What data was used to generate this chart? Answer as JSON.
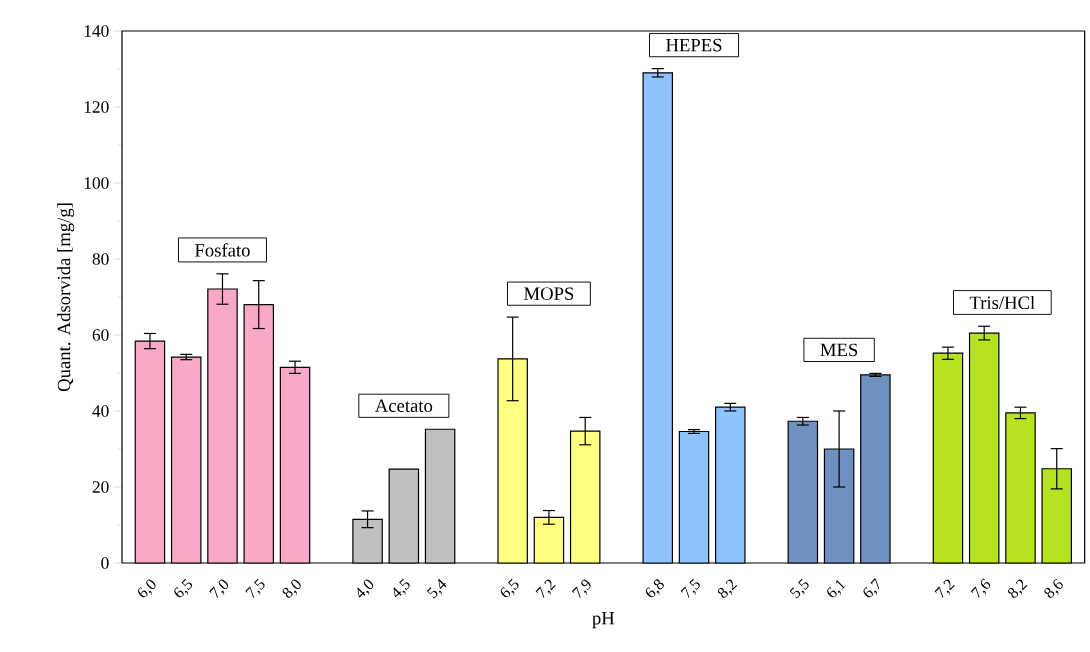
{
  "chart_data": {
    "type": "bar",
    "xlabel": "pH",
    "ylabel": "Quant. Adsorvida [mg/g]",
    "categories": [
      "6,0",
      "6,5",
      "7,0",
      "7,5",
      "8,0",
      null,
      "4,0",
      "4,5",
      "5,4",
      null,
      "6,5",
      "7,2",
      "7,9",
      null,
      "6,8",
      "7,5",
      "8,2",
      null,
      "5,5",
      "6,1",
      "6,7",
      null,
      "7,2",
      "7,6",
      "8,2",
      "8,6"
    ],
    "series": [
      {
        "name": "Fosfato",
        "color": "#f9a8c8",
        "values": [
          58.4,
          54.2,
          72.1,
          68,
          51.5,
          null,
          null,
          null,
          null,
          null,
          null,
          null,
          null,
          null,
          null,
          null,
          null,
          null,
          null,
          null,
          null,
          null,
          null,
          null,
          null,
          null
        ],
        "errors": [
          2,
          0.7,
          4,
          6.3,
          1.6,
          null,
          null,
          null,
          null,
          null,
          null,
          null,
          null,
          null,
          null,
          null,
          null,
          null,
          null,
          null,
          null,
          null,
          null,
          null,
          null,
          null
        ]
      },
      {
        "name": "Acetato",
        "color": "#c0c0c0",
        "values": [
          null,
          null,
          null,
          null,
          null,
          null,
          11.5,
          24.7,
          35.2,
          null,
          null,
          null,
          null,
          null,
          null,
          null,
          null,
          null,
          null,
          null,
          null,
          null,
          null,
          null,
          null,
          null
        ],
        "errors": [
          null,
          null,
          null,
          null,
          null,
          null,
          2.2,
          null,
          null,
          null,
          null,
          null,
          null,
          null,
          null,
          null,
          null,
          null,
          null,
          null,
          null,
          null,
          null,
          null,
          null,
          null
        ]
      },
      {
        "name": "MOPS",
        "color": "#ffff80",
        "values": [
          null,
          null,
          null,
          null,
          null,
          null,
          null,
          null,
          null,
          null,
          53.7,
          12,
          34.7,
          null,
          null,
          null,
          null,
          null,
          null,
          null,
          null,
          null,
          null,
          null,
          null,
          null
        ],
        "errors": [
          null,
          null,
          null,
          null,
          null,
          null,
          null,
          null,
          null,
          null,
          11,
          1.8,
          3.6,
          null,
          null,
          null,
          null,
          null,
          null,
          null,
          null,
          null,
          null,
          null,
          null,
          null
        ]
      },
      {
        "name": "HEPES",
        "color": "#8fc3ff",
        "values": [
          null,
          null,
          null,
          null,
          null,
          null,
          null,
          null,
          null,
          null,
          null,
          null,
          null,
          null,
          129,
          34.6,
          41,
          null,
          null,
          null,
          null,
          null,
          null,
          null,
          null,
          null
        ],
        "errors": [
          null,
          null,
          null,
          null,
          null,
          null,
          null,
          null,
          null,
          null,
          null,
          null,
          null,
          null,
          1.1,
          0.5,
          1,
          null,
          null,
          null,
          null,
          null,
          null,
          null,
          null,
          null
        ]
      },
      {
        "name": "MES",
        "color": "#6f91c0",
        "values": [
          null,
          null,
          null,
          null,
          null,
          null,
          null,
          null,
          null,
          null,
          null,
          null,
          null,
          null,
          null,
          null,
          null,
          null,
          37.3,
          30,
          49.5,
          null,
          null,
          null,
          null,
          null
        ],
        "errors": [
          null,
          null,
          null,
          null,
          null,
          null,
          null,
          null,
          null,
          null,
          null,
          null,
          null,
          null,
          null,
          null,
          null,
          null,
          1,
          10,
          0.4,
          null,
          null,
          null,
          null,
          null
        ]
      },
      {
        "name": "Tris/HCl",
        "color": "#b5e31f",
        "values": [
          null,
          null,
          null,
          null,
          null,
          null,
          null,
          null,
          null,
          null,
          null,
          null,
          null,
          null,
          null,
          null,
          null,
          null,
          null,
          null,
          null,
          null,
          55.2,
          60.5,
          39.5,
          24.8
        ],
        "errors": [
          null,
          null,
          null,
          null,
          null,
          null,
          null,
          null,
          null,
          null,
          null,
          null,
          null,
          null,
          null,
          null,
          null,
          null,
          null,
          null,
          null,
          null,
          1.6,
          1.8,
          1.5,
          5.3
        ]
      }
    ],
    "ylim": [
      0,
      140
    ],
    "yticks": [
      0,
      20,
      40,
      60,
      80,
      100,
      120,
      140
    ]
  }
}
